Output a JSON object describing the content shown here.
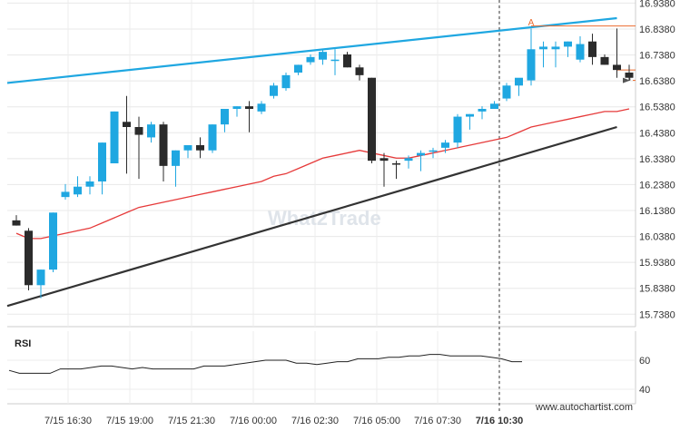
{
  "chart_data": {
    "type": "candlestick",
    "y_ticks": [
      "16.9380",
      "16.8380",
      "16.7380",
      "16.6380",
      "16.5380",
      "16.4380",
      "16.3380",
      "16.2380",
      "16.1380",
      "16.0380",
      "15.9380",
      "15.8380",
      "15.7380"
    ],
    "ylim": [
      15.69,
      16.95
    ],
    "x_ticks": [
      "7/15 16:30",
      "7/15 19:00",
      "7/15 21:30",
      "7/16 00:00",
      "7/16 02:30",
      "7/16 05:00",
      "7/16 07:30",
      "7/16 10:30"
    ],
    "candles": [
      {
        "t": 0,
        "o": 16.1,
        "h": 16.12,
        "l": 16.08,
        "c": 16.08,
        "d": true
      },
      {
        "t": 1,
        "o": 16.06,
        "h": 16.07,
        "l": 15.83,
        "c": 15.85,
        "d": true
      },
      {
        "t": 2,
        "o": 15.85,
        "h": 15.91,
        "l": 15.8,
        "c": 15.91,
        "d": false
      },
      {
        "t": 3,
        "o": 15.91,
        "h": 16.13,
        "l": 15.9,
        "c": 16.13,
        "d": false
      },
      {
        "t": 4,
        "o": 16.19,
        "h": 16.24,
        "l": 16.18,
        "c": 16.21,
        "d": false
      },
      {
        "t": 5,
        "o": 16.2,
        "h": 16.27,
        "l": 16.19,
        "c": 16.23,
        "d": false
      },
      {
        "t": 6,
        "o": 16.23,
        "h": 16.27,
        "l": 16.2,
        "c": 16.25,
        "d": false
      },
      {
        "t": 7,
        "o": 16.25,
        "h": 16.4,
        "l": 16.2,
        "c": 16.4,
        "d": false
      },
      {
        "t": 8,
        "o": 16.32,
        "h": 16.52,
        "l": 16.32,
        "c": 16.52,
        "d": false
      },
      {
        "t": 9,
        "o": 16.48,
        "h": 16.58,
        "l": 16.28,
        "c": 16.46,
        "d": true
      },
      {
        "t": 10,
        "o": 16.46,
        "h": 16.5,
        "l": 16.26,
        "c": 16.43,
        "d": true
      },
      {
        "t": 11,
        "o": 16.42,
        "h": 16.48,
        "l": 16.4,
        "c": 16.47,
        "d": false
      },
      {
        "t": 12,
        "o": 16.47,
        "h": 16.48,
        "l": 16.25,
        "c": 16.31,
        "d": true
      },
      {
        "t": 13,
        "o": 16.31,
        "h": 16.37,
        "l": 16.23,
        "c": 16.37,
        "d": false
      },
      {
        "t": 14,
        "o": 16.37,
        "h": 16.39,
        "l": 16.34,
        "c": 16.39,
        "d": false
      },
      {
        "t": 15,
        "o": 16.39,
        "h": 16.42,
        "l": 16.34,
        "c": 16.37,
        "d": true
      },
      {
        "t": 16,
        "o": 16.37,
        "h": 16.47,
        "l": 16.36,
        "c": 16.47,
        "d": false
      },
      {
        "t": 17,
        "o": 16.47,
        "h": 16.53,
        "l": 16.44,
        "c": 16.53,
        "d": false
      },
      {
        "t": 18,
        "o": 16.53,
        "h": 16.54,
        "l": 16.5,
        "c": 16.54,
        "d": false
      },
      {
        "t": 19,
        "o": 16.54,
        "h": 16.56,
        "l": 16.44,
        "c": 16.53,
        "d": true
      },
      {
        "t": 20,
        "o": 16.52,
        "h": 16.56,
        "l": 16.51,
        "c": 16.55,
        "d": false
      },
      {
        "t": 21,
        "o": 16.58,
        "h": 16.63,
        "l": 16.57,
        "c": 16.62,
        "d": false
      },
      {
        "t": 22,
        "o": 16.61,
        "h": 16.67,
        "l": 16.6,
        "c": 16.66,
        "d": false
      },
      {
        "t": 23,
        "o": 16.67,
        "h": 16.7,
        "l": 16.66,
        "c": 16.7,
        "d": false
      },
      {
        "t": 24,
        "o": 16.71,
        "h": 16.74,
        "l": 16.7,
        "c": 16.73,
        "d": false
      },
      {
        "t": 25,
        "o": 16.72,
        "h": 16.76,
        "l": 16.7,
        "c": 16.75,
        "d": false
      },
      {
        "t": 26,
        "o": 16.72,
        "h": 16.76,
        "l": 16.66,
        "c": 16.72,
        "d": false
      },
      {
        "t": 27,
        "o": 16.74,
        "h": 16.75,
        "l": 16.69,
        "c": 16.69,
        "d": true
      },
      {
        "t": 28,
        "o": 16.69,
        "h": 16.7,
        "l": 16.64,
        "c": 16.66,
        "d": true
      },
      {
        "t": 29,
        "o": 16.65,
        "h": 16.65,
        "l": 16.32,
        "c": 16.33,
        "d": true
      },
      {
        "t": 30,
        "o": 16.34,
        "h": 16.36,
        "l": 16.23,
        "c": 16.33,
        "d": true
      },
      {
        "t": 31,
        "o": 16.32,
        "h": 16.33,
        "l": 16.26,
        "c": 16.32,
        "d": true
      },
      {
        "t": 32,
        "o": 16.33,
        "h": 16.35,
        "l": 16.3,
        "c": 16.34,
        "d": false
      },
      {
        "t": 33,
        "o": 16.35,
        "h": 16.37,
        "l": 16.29,
        "c": 16.36,
        "d": false
      },
      {
        "t": 34,
        "o": 16.37,
        "h": 16.38,
        "l": 16.34,
        "c": 16.37,
        "d": false
      },
      {
        "t": 35,
        "o": 16.38,
        "h": 16.41,
        "l": 16.36,
        "c": 16.4,
        "d": false
      },
      {
        "t": 36,
        "o": 16.4,
        "h": 16.51,
        "l": 16.38,
        "c": 16.5,
        "d": false
      },
      {
        "t": 37,
        "o": 16.5,
        "h": 16.51,
        "l": 16.45,
        "c": 16.51,
        "d": false
      },
      {
        "t": 38,
        "o": 16.52,
        "h": 16.54,
        "l": 16.49,
        "c": 16.53,
        "d": false
      },
      {
        "t": 39,
        "o": 16.53,
        "h": 16.56,
        "l": 16.53,
        "c": 16.55,
        "d": false
      },
      {
        "t": 40,
        "o": 16.57,
        "h": 16.63,
        "l": 16.56,
        "c": 16.62,
        "d": false
      },
      {
        "t": 41,
        "o": 16.62,
        "h": 16.64,
        "l": 16.58,
        "c": 16.65,
        "d": false
      },
      {
        "t": 42,
        "o": 16.64,
        "h": 16.84,
        "l": 16.62,
        "c": 16.76,
        "d": false
      },
      {
        "t": 43,
        "o": 16.76,
        "h": 16.79,
        "l": 16.69,
        "c": 16.77,
        "d": false
      },
      {
        "t": 44,
        "o": 16.76,
        "h": 16.79,
        "l": 16.69,
        "c": 16.77,
        "d": false
      },
      {
        "t": 45,
        "o": 16.77,
        "h": 16.79,
        "l": 16.73,
        "c": 16.79,
        "d": false
      },
      {
        "t": 46,
        "o": 16.72,
        "h": 16.81,
        "l": 16.71,
        "c": 16.78,
        "d": false
      },
      {
        "t": 47,
        "o": 16.79,
        "h": 16.82,
        "l": 16.7,
        "c": 16.73,
        "d": true
      },
      {
        "t": 48,
        "o": 16.73,
        "h": 16.74,
        "l": 16.7,
        "c": 16.7,
        "d": true
      },
      {
        "t": 49,
        "o": 16.7,
        "h": 16.84,
        "l": 16.65,
        "c": 16.68,
        "d": true
      },
      {
        "t": 50,
        "o": 16.67,
        "h": 16.7,
        "l": 16.64,
        "c": 16.65,
        "d": true
      }
    ],
    "ma_line": [
      16.05,
      16.03,
      16.03,
      16.04,
      16.05,
      16.06,
      16.07,
      16.09,
      16.11,
      16.13,
      16.15,
      16.16,
      16.17,
      16.18,
      16.19,
      16.2,
      16.21,
      16.22,
      16.23,
      16.24,
      16.25,
      16.27,
      16.28,
      16.3,
      16.32,
      16.34,
      16.35,
      16.36,
      16.37,
      16.36,
      16.35,
      16.34,
      16.34,
      16.35,
      16.36,
      16.37,
      16.38,
      16.39,
      16.4,
      16.41,
      16.42,
      16.44,
      16.46,
      16.47,
      16.48,
      16.49,
      16.5,
      16.51,
      16.52,
      16.52,
      16.53
    ],
    "support_line": {
      "from": [
        0,
        15.77
      ],
      "to": [
        49,
        16.46
      ]
    },
    "resistance_line": {
      "from": [
        0,
        16.63
      ],
      "to": [
        49,
        16.88
      ]
    },
    "level_top": 16.85,
    "level_mid": 16.68,
    "level_low": 16.64,
    "forecast_arrow": {
      "from": [
        50,
        16.67
      ],
      "to": [
        58,
        16.64
      ]
    },
    "pattern_marker": "A",
    "rsi_ticks": [
      "60",
      "40"
    ],
    "rsi_ylim": [
      30,
      80
    ],
    "rsi": [
      53,
      51,
      51,
      51,
      51,
      54,
      54,
      54,
      55,
      56,
      56,
      55,
      54,
      55,
      54,
      54,
      54,
      54,
      54,
      56,
      56,
      56,
      57,
      58,
      59,
      60,
      60,
      60,
      58,
      58,
      57,
      58,
      59,
      59,
      61,
      61,
      61,
      62,
      62,
      63,
      63,
      64,
      64,
      63,
      63,
      63,
      63,
      62,
      61,
      59,
      59
    ],
    "rsi_label": "RSI",
    "watermark": "What2Trade",
    "source": "www.autochartist.com",
    "colors": {
      "bull": "#1fa7e1",
      "bear": "#2b2b2b",
      "ma": "#e63a3a",
      "support": "#333333",
      "resistance": "#1fa7e1",
      "level": "#ec6b2f"
    }
  }
}
